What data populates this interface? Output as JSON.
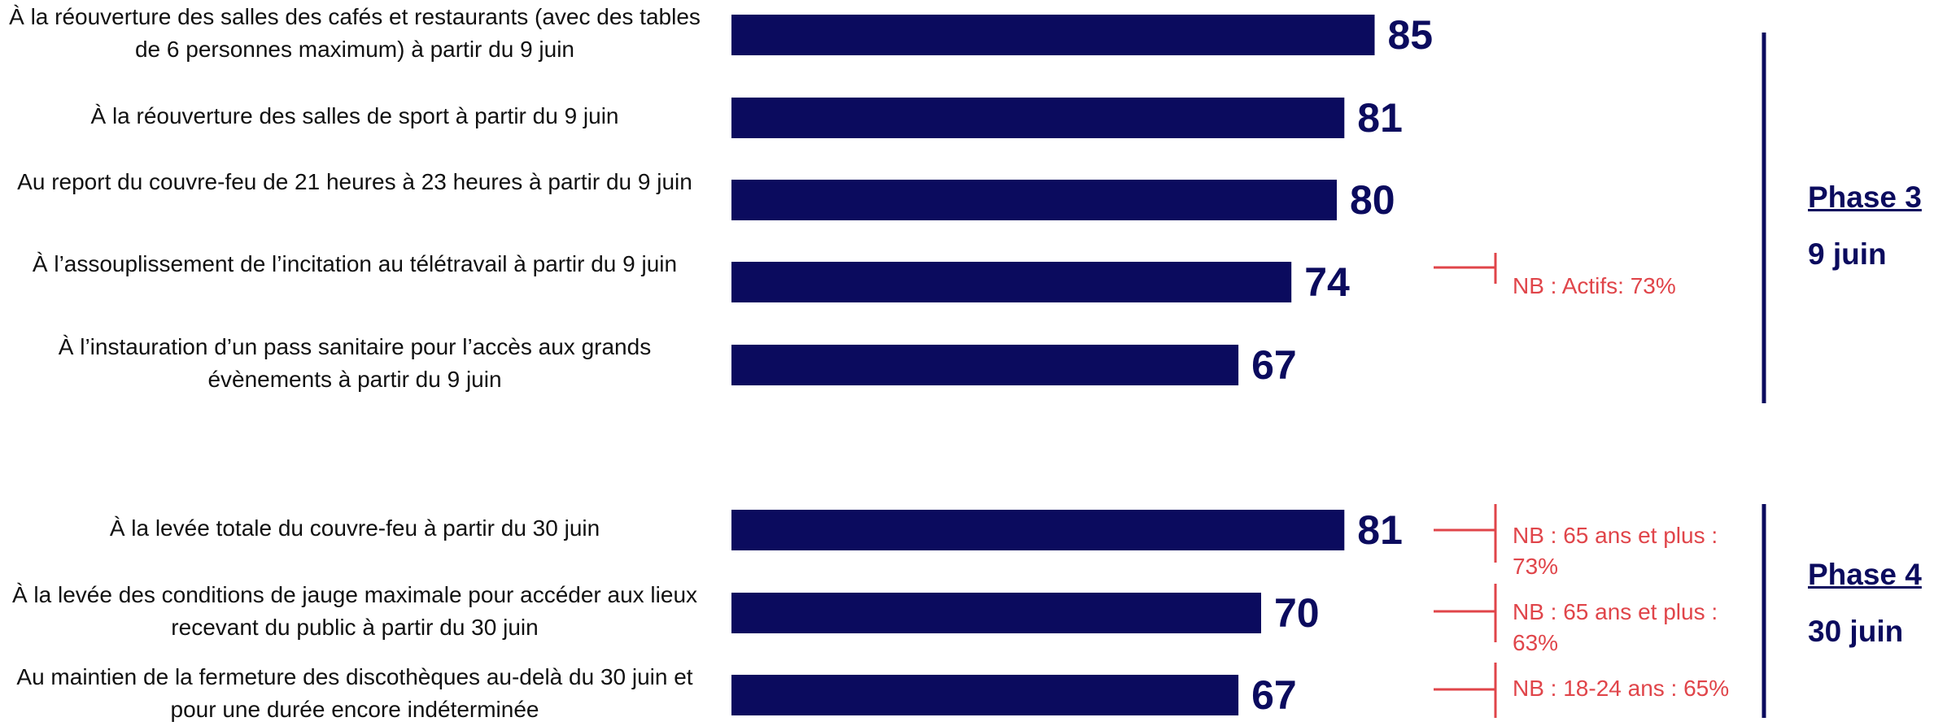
{
  "chart_data": {
    "type": "bar",
    "orientation": "horizontal",
    "categories": [
      "À la réouverture des salles des cafés et restaurants (avec des tables de 6 personnes maximum) à partir du 9 juin",
      "À la réouverture des salles de sport à partir du 9 juin",
      "Au report du couvre-feu de 21 heures à 23 heures à partir du 9 juin",
      "À l’assouplissement de l’incitation au télétravail à partir du 9 juin",
      "À l’instauration d’un pass sanitaire pour l’accès aux grands évènements à partir du 9 juin",
      "À la levée totale du couvre-feu à partir du 30 juin",
      "À la levée des conditions de jauge maximale pour accéder aux lieux recevant du public à partir du 30 juin",
      "Au maintien de la fermeture des discothèques au-delà du 30 juin et pour une durée encore indéterminée"
    ],
    "values": [
      85,
      81,
      80,
      74,
      67,
      81,
      70,
      67
    ],
    "data_labels": [
      "85",
      "81",
      "80",
      "74",
      "67",
      "81",
      "70",
      "67"
    ],
    "groups": [
      {
        "title": "Phase 3",
        "subtitle": "9 juin",
        "indices": [
          0,
          1,
          2,
          3,
          4
        ]
      },
      {
        "title": "Phase 4",
        "subtitle": "30 juin",
        "indices": [
          5,
          6,
          7
        ]
      }
    ],
    "annotations": [
      {
        "index": 3,
        "text": "NB : Actifs: 73%"
      },
      {
        "index": 5,
        "text": "NB : 65 ans et plus : 73%"
      },
      {
        "index": 6,
        "text": "NB : 65 ans et plus : 63%"
      },
      {
        "index": 7,
        "text": "NB : 18-24 ans : 65%"
      }
    ],
    "xlim": [
      0,
      100
    ],
    "grid": false,
    "legend": "none",
    "colors": {
      "bar": "#0b0b5e",
      "value": "#0b0b5e",
      "annotation": "#e0454a",
      "label": "#111111"
    }
  }
}
